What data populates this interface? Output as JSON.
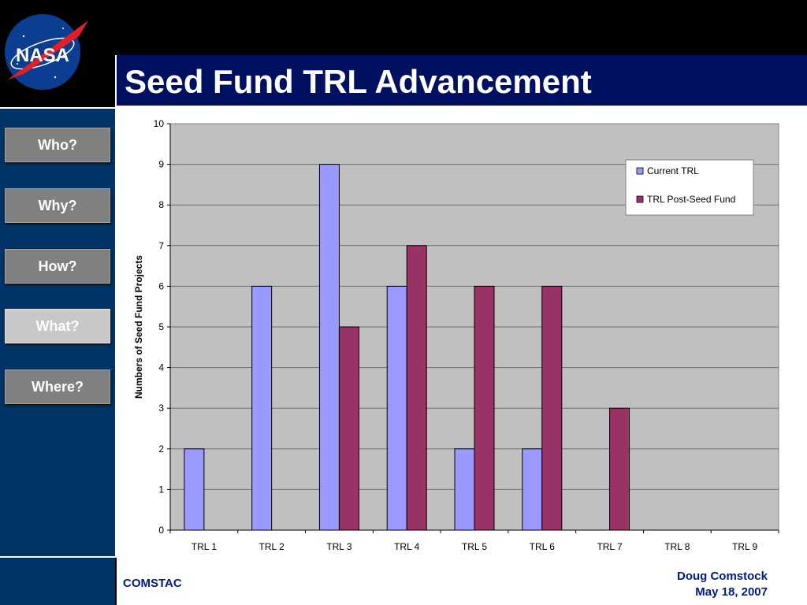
{
  "header": {
    "title": "Seed Fund TRL Advancement",
    "logo_icon": "nasa-logo-icon",
    "logo_text": "NASA"
  },
  "nav": [
    {
      "label": "Who?",
      "active": false
    },
    {
      "label": "Why?",
      "active": false
    },
    {
      "label": "How?",
      "active": false
    },
    {
      "label": "What?",
      "active": true
    },
    {
      "label": "Where?",
      "active": false
    }
  ],
  "footer": {
    "org": "COMSTAC",
    "author": "Doug Comstock",
    "date": "May 18, 2007"
  },
  "colors": {
    "series1": "#9999ff",
    "series2": "#993366",
    "plot_bg": "#c0c0c0",
    "title_bar": "#001060",
    "sidebar": "#003366"
  },
  "chart_data": {
    "type": "bar",
    "categories": [
      "TRL 1",
      "TRL 2",
      "TRL 3",
      "TRL 4",
      "TRL 5",
      "TRL 6",
      "TRL 7",
      "TRL 8",
      "TRL 9"
    ],
    "series": [
      {
        "name": "Current TRL",
        "values": [
          2,
          6,
          9,
          6,
          2,
          2,
          0,
          0,
          0
        ]
      },
      {
        "name": "TRL Post-Seed Fund",
        "values": [
          0,
          0,
          5,
          7,
          6,
          6,
          3,
          0,
          0
        ]
      }
    ],
    "ylabel": "Numbers of Seed Fund Projects",
    "xlabel": "",
    "ylim": [
      0,
      10
    ],
    "yticks": [
      0,
      1,
      2,
      3,
      4,
      5,
      6,
      7,
      8,
      9,
      10
    ],
    "grid": true,
    "legend_position": "top-right"
  }
}
